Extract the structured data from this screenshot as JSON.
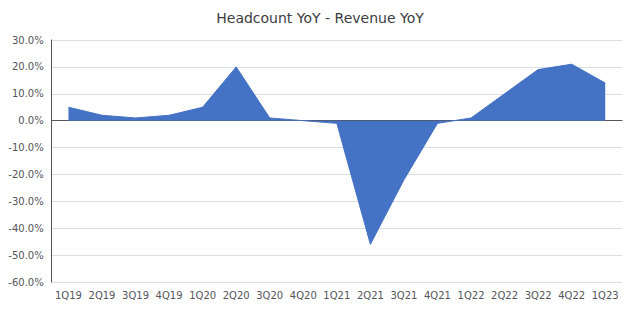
{
  "chart_data": {
    "type": "area",
    "title": "Headcount YoY - Revenue YoY",
    "categories": [
      "1Q19",
      "2Q19",
      "3Q19",
      "4Q19",
      "1Q20",
      "2Q20",
      "3Q20",
      "4Q20",
      "1Q21",
      "2Q21",
      "3Q21",
      "4Q21",
      "1Q22",
      "2Q22",
      "3Q22",
      "4Q22",
      "1Q23"
    ],
    "values": [
      0.05,
      0.02,
      0.01,
      0.02,
      0.05,
      0.2,
      0.01,
      0.0,
      -0.01,
      -0.46,
      -0.22,
      -0.01,
      0.01,
      0.1,
      0.19,
      0.21,
      0.14
    ],
    "color": "#4472C4",
    "ylim": [
      -0.6,
      0.3
    ],
    "yticks": [
      {
        "value": -0.6,
        "label": "-60.0%"
      },
      {
        "value": -0.5,
        "label": "-50.0%"
      },
      {
        "value": -0.4,
        "label": "-40.0%"
      },
      {
        "value": -0.3,
        "label": "-30.0%"
      },
      {
        "value": -0.2,
        "label": "-20.0%"
      },
      {
        "value": -0.1,
        "label": "-10.0%"
      },
      {
        "value": 0.0,
        "label": "0.0%"
      },
      {
        "value": 0.1,
        "label": "10.0%"
      },
      {
        "value": 0.2,
        "label": "20.0%"
      },
      {
        "value": 0.3,
        "label": "30.0%"
      }
    ],
    "grid": true
  }
}
